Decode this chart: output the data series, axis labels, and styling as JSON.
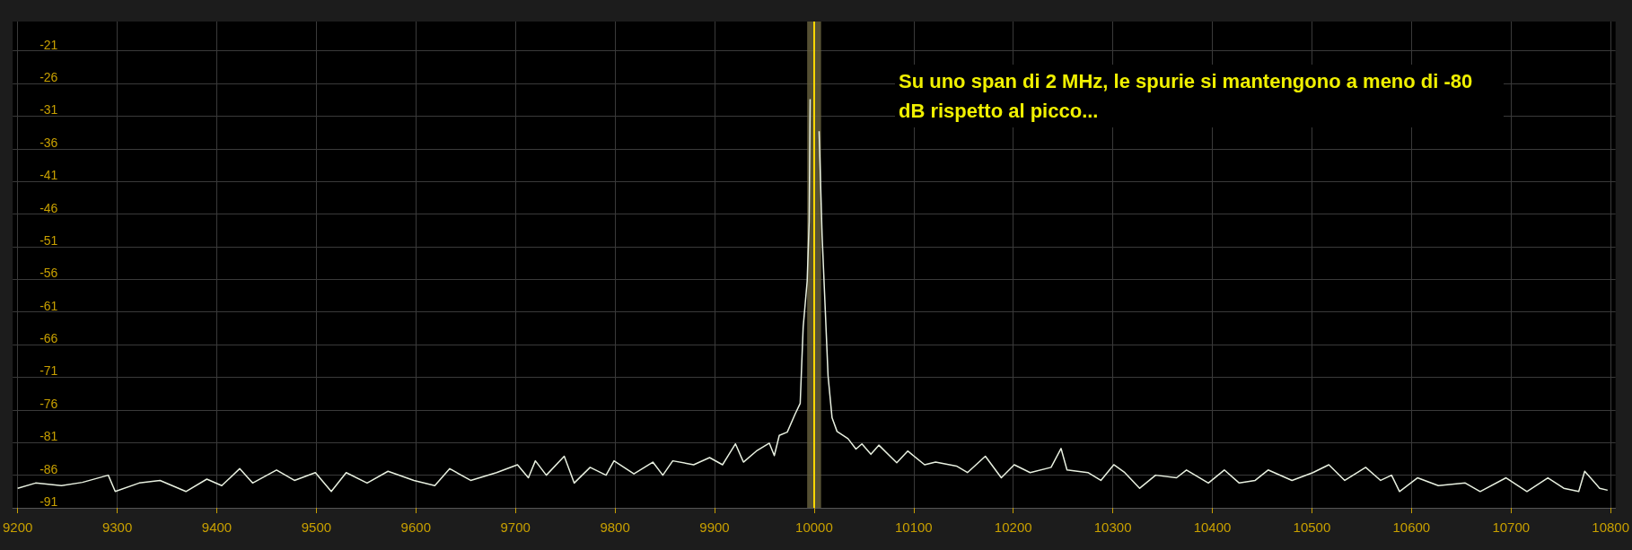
{
  "chart_data": {
    "type": "line",
    "annotations": [
      "Su uno span di 2 MHz, le spurie si mantengono a meno di -80 dB rispetto al picco..."
    ],
    "x": [
      9200,
      9218,
      9244,
      9265,
      9291,
      9298,
      9322,
      9343,
      9369,
      9390,
      9405,
      9423,
      9436,
      9460,
      9478,
      9499,
      9515,
      9530,
      9551,
      9572,
      9598,
      9619,
      9634,
      9655,
      9681,
      9702,
      9713,
      9720,
      9731,
      9749,
      9759,
      9775,
      9791,
      9799,
      9819,
      9838,
      9848,
      9858,
      9879,
      9895,
      9908,
      9921,
      9929,
      9942,
      9955,
      9960,
      9965,
      9973,
      9981,
      9986,
      9989,
      9993,
      9995,
      9996,
      9998,
      10000,
      10002,
      10005,
      10008,
      10011,
      10014,
      10018,
      10023,
      10034,
      10042,
      10048,
      10057,
      10065,
      10083,
      10094,
      10111,
      10122,
      10143,
      10154,
      10172,
      10188,
      10201,
      10217,
      10238,
      10248,
      10254,
      10275,
      10288,
      10301,
      10312,
      10327,
      10343,
      10364,
      10374,
      10396,
      10412,
      10427,
      10443,
      10456,
      10480,
      10501,
      10517,
      10533,
      10554,
      10569,
      10580,
      10588,
      10606,
      10627,
      10654,
      10669,
      10695,
      10716,
      10737,
      10753,
      10768,
      10774,
      10789,
      10797
    ],
    "series": [
      {
        "color": "#e8f0e0",
        "values": [
          -88.0,
          -87.2,
          -87.6,
          -87.1,
          -86.0,
          -88.5,
          -87.2,
          -86.8,
          -88.5,
          -86.6,
          -87.6,
          -85.0,
          -87.2,
          -85.2,
          -86.8,
          -85.6,
          -88.5,
          -85.6,
          -87.2,
          -85.4,
          -86.8,
          -87.6,
          -85.0,
          -86.8,
          -85.6,
          -84.4,
          -86.4,
          -83.8,
          -86.0,
          -83.1,
          -87.2,
          -84.8,
          -86.0,
          -83.8,
          -85.8,
          -84.0,
          -86.0,
          -83.8,
          -84.4,
          -83.3,
          -84.4,
          -81.2,
          -84.0,
          -82.3,
          -81.1,
          -83.0,
          -79.9,
          -79.4,
          -76.6,
          -75.0,
          -63.3,
          -56.3,
          -47.2,
          -28.4,
          null,
          null,
          null,
          -33.3,
          -49.3,
          -60.0,
          -70.8,
          -77.2,
          -79.3,
          -80.4,
          -82.0,
          -81.2,
          -82.8,
          -81.4,
          -84.1,
          -82.3,
          -84.4,
          -84.0,
          -84.6,
          -85.6,
          -83.1,
          -86.4,
          -84.4,
          -85.6,
          -84.8,
          -81.9,
          -85.2,
          -85.6,
          -86.8,
          -84.4,
          -85.6,
          -88.0,
          -86.0,
          -86.4,
          -85.2,
          -87.2,
          -85.2,
          -87.2,
          -86.8,
          -85.2,
          -86.8,
          -85.6,
          -84.4,
          -86.8,
          -84.8,
          -86.8,
          -86.0,
          -88.5,
          -86.4,
          -87.6,
          -87.2,
          -88.5,
          -86.4,
          -88.5,
          -86.4,
          -88.0,
          -88.5,
          -85.4,
          -88.0,
          -88.3
        ]
      }
    ],
    "xlim": [
      9195,
      10805
    ],
    "xticks": [
      9200,
      9300,
      9400,
      9500,
      9600,
      9700,
      9800,
      9900,
      10000,
      10100,
      10200,
      10300,
      10400,
      10500,
      10600,
      10700,
      10800
    ],
    "ylim": [
      -91,
      -16.5
    ],
    "yticks": [
      -21,
      -26,
      -31,
      -36,
      -41,
      -46,
      -51,
      -56,
      -61,
      -66,
      -71,
      -76,
      -81,
      -86,
      -91
    ],
    "grid": true,
    "ref_lines": [
      {
        "axis": "x",
        "value": 10000,
        "color": "#ffd700"
      }
    ],
    "bands": [
      {
        "axis": "x",
        "from": 9993,
        "to": 10007,
        "color": "#6a6440"
      }
    ]
  }
}
